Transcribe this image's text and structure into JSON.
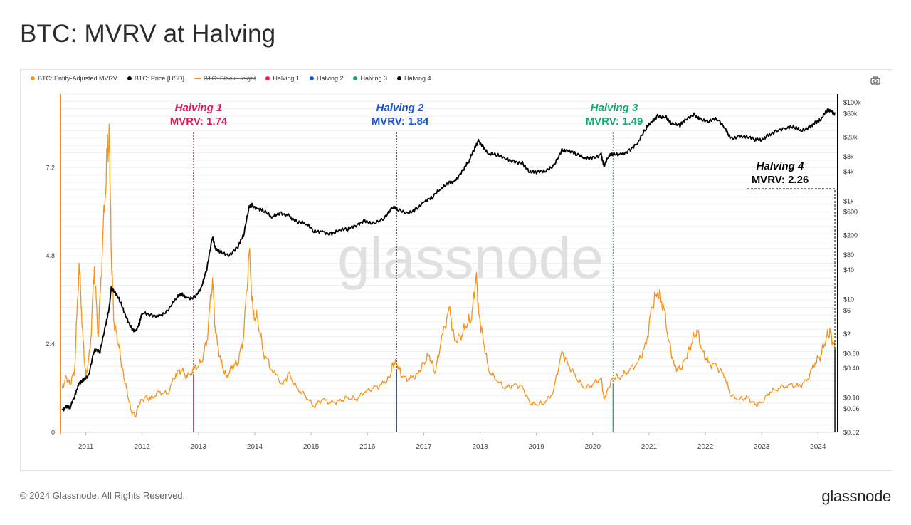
{
  "page": {
    "title": "BTC: MVRV at Halving",
    "copyright": "© 2024 Glassnode. All Rights Reserved.",
    "brand": "glassnode",
    "watermark": "glassnode"
  },
  "legend": [
    {
      "label": "BTC: Entity-Adjusted MVRV",
      "color": "#f7931a",
      "marker": "dot",
      "enabled": true
    },
    {
      "label": "BTC: Price [USD]",
      "color": "#000000",
      "marker": "dot",
      "enabled": true
    },
    {
      "label": "BTC: Block Height",
      "color": "#f7931a",
      "marker": "dash",
      "enabled": false
    },
    {
      "label": "Halving 1",
      "color": "#e6195a",
      "marker": "dot",
      "enabled": true
    },
    {
      "label": "Halving 2",
      "color": "#1455d9",
      "marker": "dot",
      "enabled": true
    },
    {
      "label": "Halving 3",
      "color": "#16a870",
      "marker": "dot",
      "enabled": true
    },
    {
      "label": "Halving 4",
      "color": "#000000",
      "marker": "dot",
      "enabled": true
    }
  ],
  "chart_data": {
    "type": "line",
    "x_range": [
      2010.55,
      2024.35
    ],
    "x_ticks": [
      "2011",
      "2012",
      "2013",
      "2014",
      "2015",
      "2016",
      "2017",
      "2018",
      "2019",
      "2020",
      "2021",
      "2022",
      "2023",
      "2024"
    ],
    "y_left": {
      "range": [
        0,
        9.2
      ],
      "ticks": [
        0,
        2.4,
        4.8,
        7.2
      ],
      "tick_labels": [
        "0",
        "2.4",
        "4.8",
        "7.2"
      ]
    },
    "y_right": {
      "scale": "log",
      "range": [
        0.02,
        150000
      ],
      "ticks": [
        0.02,
        0.06,
        0.1,
        0.4,
        0.8,
        2,
        6,
        10,
        40,
        80,
        200,
        600,
        1000,
        4000,
        8000,
        20000,
        60000,
        100000
      ],
      "tick_labels": [
        "$0.02",
        "$0.06",
        "$0.10",
        "$0.40",
        "$0.80",
        "$2",
        "$6",
        "$10",
        "$40",
        "$80",
        "$200",
        "$600",
        "$1k",
        "$4k",
        "$8k",
        "$20k",
        "$60k",
        "$100k"
      ]
    },
    "grid": true,
    "series": [
      {
        "name": "BTC: Entity-Adjusted MVRV",
        "color": "#f7931a",
        "axis": "left",
        "points": [
          [
            2010.58,
            1.2
          ],
          [
            2010.65,
            1.5
          ],
          [
            2010.72,
            1.3
          ],
          [
            2010.8,
            1.7
          ],
          [
            2010.88,
            4.6
          ],
          [
            2010.95,
            2.5
          ],
          [
            2011.0,
            1.5
          ],
          [
            2011.08,
            2.3
          ],
          [
            2011.15,
            4.5
          ],
          [
            2011.22,
            2.6
          ],
          [
            2011.3,
            5.2
          ],
          [
            2011.38,
            7.6
          ],
          [
            2011.42,
            8.0
          ],
          [
            2011.45,
            5.0
          ],
          [
            2011.5,
            3.0
          ],
          [
            2011.58,
            2.4
          ],
          [
            2011.65,
            1.7
          ],
          [
            2011.72,
            1.2
          ],
          [
            2011.8,
            0.6
          ],
          [
            2011.88,
            0.45
          ],
          [
            2011.95,
            0.8
          ],
          [
            2012.05,
            0.95
          ],
          [
            2012.15,
            0.9
          ],
          [
            2012.3,
            1.1
          ],
          [
            2012.45,
            1.05
          ],
          [
            2012.6,
            1.6
          ],
          [
            2012.7,
            1.7
          ],
          [
            2012.8,
            1.5
          ],
          [
            2012.93,
            1.74
          ],
          [
            2013.05,
            1.9
          ],
          [
            2013.15,
            2.5
          ],
          [
            2013.25,
            4.2
          ],
          [
            2013.3,
            2.7
          ],
          [
            2013.4,
            1.9
          ],
          [
            2013.5,
            1.5
          ],
          [
            2013.6,
            1.8
          ],
          [
            2013.7,
            1.9
          ],
          [
            2013.8,
            2.6
          ],
          [
            2013.9,
            4.9
          ],
          [
            2013.97,
            3.2
          ],
          [
            2014.05,
            3.1
          ],
          [
            2014.15,
            2.2
          ],
          [
            2014.3,
            1.7
          ],
          [
            2014.5,
            1.3
          ],
          [
            2014.6,
            1.6
          ],
          [
            2014.75,
            1.2
          ],
          [
            2014.9,
            1.0
          ],
          [
            2015.05,
            0.7
          ],
          [
            2015.2,
            0.9
          ],
          [
            2015.35,
            0.8
          ],
          [
            2015.5,
            0.85
          ],
          [
            2015.65,
            0.95
          ],
          [
            2015.8,
            0.9
          ],
          [
            2015.95,
            1.1
          ],
          [
            2016.1,
            1.2
          ],
          [
            2016.25,
            1.3
          ],
          [
            2016.4,
            1.5
          ],
          [
            2016.45,
            1.9
          ],
          [
            2016.53,
            1.84
          ],
          [
            2016.62,
            1.5
          ],
          [
            2016.75,
            1.45
          ],
          [
            2016.9,
            1.6
          ],
          [
            2017.0,
            1.9
          ],
          [
            2017.1,
            2.1
          ],
          [
            2017.2,
            1.6
          ],
          [
            2017.3,
            2.4
          ],
          [
            2017.45,
            3.4
          ],
          [
            2017.55,
            2.5
          ],
          [
            2017.65,
            2.6
          ],
          [
            2017.75,
            2.9
          ],
          [
            2017.85,
            3.1
          ],
          [
            2017.93,
            4.3
          ],
          [
            2017.98,
            3.2
          ],
          [
            2018.05,
            2.6
          ],
          [
            2018.15,
            1.7
          ],
          [
            2018.3,
            1.4
          ],
          [
            2018.45,
            1.2
          ],
          [
            2018.6,
            1.3
          ],
          [
            2018.75,
            1.25
          ],
          [
            2018.88,
            0.8
          ],
          [
            2019.0,
            0.75
          ],
          [
            2019.15,
            0.8
          ],
          [
            2019.3,
            1.1
          ],
          [
            2019.45,
            2.2
          ],
          [
            2019.55,
            1.9
          ],
          [
            2019.7,
            1.5
          ],
          [
            2019.85,
            1.2
          ],
          [
            2020.0,
            1.3
          ],
          [
            2020.15,
            1.5
          ],
          [
            2020.2,
            0.9
          ],
          [
            2020.28,
            1.2
          ],
          [
            2020.36,
            1.49
          ],
          [
            2020.5,
            1.5
          ],
          [
            2020.65,
            1.7
          ],
          [
            2020.8,
            1.9
          ],
          [
            2020.95,
            2.4
          ],
          [
            2021.05,
            3.4
          ],
          [
            2021.15,
            3.8
          ],
          [
            2021.25,
            3.5
          ],
          [
            2021.35,
            2.5
          ],
          [
            2021.45,
            1.8
          ],
          [
            2021.55,
            1.7
          ],
          [
            2021.65,
            2.0
          ],
          [
            2021.75,
            2.4
          ],
          [
            2021.85,
            2.8
          ],
          [
            2021.95,
            2.2
          ],
          [
            2022.05,
            1.9
          ],
          [
            2022.2,
            1.8
          ],
          [
            2022.35,
            1.5
          ],
          [
            2022.45,
            1.0
          ],
          [
            2022.6,
            0.9
          ],
          [
            2022.75,
            0.95
          ],
          [
            2022.88,
            0.75
          ],
          [
            2023.0,
            0.8
          ],
          [
            2023.15,
            1.1
          ],
          [
            2023.3,
            1.2
          ],
          [
            2023.5,
            1.3
          ],
          [
            2023.65,
            1.25
          ],
          [
            2023.8,
            1.4
          ],
          [
            2023.95,
            1.9
          ],
          [
            2024.05,
            2.1
          ],
          [
            2024.15,
            2.6
          ],
          [
            2024.22,
            2.7
          ],
          [
            2024.3,
            2.26
          ]
        ]
      },
      {
        "name": "BTC: Price [USD]",
        "color": "#000000",
        "axis": "right",
        "points": [
          [
            2010.58,
            0.06
          ],
          [
            2010.65,
            0.07
          ],
          [
            2010.72,
            0.06
          ],
          [
            2010.8,
            0.1
          ],
          [
            2010.88,
            0.2
          ],
          [
            2010.95,
            0.25
          ],
          [
            2011.05,
            0.3
          ],
          [
            2011.15,
            0.9
          ],
          [
            2011.25,
            0.8
          ],
          [
            2011.35,
            3
          ],
          [
            2011.42,
            8
          ],
          [
            2011.45,
            18
          ],
          [
            2011.5,
            14
          ],
          [
            2011.6,
            9
          ],
          [
            2011.7,
            5
          ],
          [
            2011.8,
            3
          ],
          [
            2011.88,
            2.3
          ],
          [
            2011.95,
            3
          ],
          [
            2012.0,
            5
          ],
          [
            2012.15,
            5
          ],
          [
            2012.3,
            5
          ],
          [
            2012.45,
            6
          ],
          [
            2012.6,
            10
          ],
          [
            2012.7,
            12
          ],
          [
            2012.8,
            11
          ],
          [
            2012.93,
            12
          ],
          [
            2013.05,
            18
          ],
          [
            2013.15,
            40
          ],
          [
            2013.25,
            180
          ],
          [
            2013.3,
            110
          ],
          [
            2013.4,
            100
          ],
          [
            2013.55,
            80
          ],
          [
            2013.7,
            110
          ],
          [
            2013.8,
            190
          ],
          [
            2013.9,
            800
          ],
          [
            2013.95,
            900
          ],
          [
            2014.05,
            700
          ],
          [
            2014.15,
            600
          ],
          [
            2014.3,
            450
          ],
          [
            2014.45,
            600
          ],
          [
            2014.6,
            550
          ],
          [
            2014.75,
            380
          ],
          [
            2014.9,
            330
          ],
          [
            2015.05,
            230
          ],
          [
            2015.2,
            250
          ],
          [
            2015.35,
            235
          ],
          [
            2015.5,
            260
          ],
          [
            2015.65,
            250
          ],
          [
            2015.8,
            300
          ],
          [
            2015.95,
            420
          ],
          [
            2016.1,
            380
          ],
          [
            2016.3,
            450
          ],
          [
            2016.45,
            700
          ],
          [
            2016.53,
            650
          ],
          [
            2016.7,
            600
          ],
          [
            2016.85,
            720
          ],
          [
            2017.0,
            950
          ],
          [
            2017.15,
            1100
          ],
          [
            2017.3,
            1700
          ],
          [
            2017.45,
            2500
          ],
          [
            2017.55,
            2700
          ],
          [
            2017.7,
            4300
          ],
          [
            2017.8,
            6000
          ],
          [
            2017.9,
            11000
          ],
          [
            2017.97,
            18000
          ],
          [
            2018.05,
            14000
          ],
          [
            2018.15,
            9000
          ],
          [
            2018.3,
            8000
          ],
          [
            2018.45,
            7000
          ],
          [
            2018.6,
            6800
          ],
          [
            2018.75,
            6400
          ],
          [
            2018.88,
            3800
          ],
          [
            2019.0,
            3600
          ],
          [
            2019.15,
            3900
          ],
          [
            2019.3,
            5500
          ],
          [
            2019.45,
            11500
          ],
          [
            2019.55,
            10500
          ],
          [
            2019.7,
            8500
          ],
          [
            2019.85,
            7300
          ],
          [
            2020.0,
            8000
          ],
          [
            2020.15,
            9500
          ],
          [
            2020.2,
            5000
          ],
          [
            2020.28,
            7500
          ],
          [
            2020.36,
            8700
          ],
          [
            2020.5,
            9500
          ],
          [
            2020.65,
            11500
          ],
          [
            2020.8,
            15000
          ],
          [
            2020.95,
            28000
          ],
          [
            2021.05,
            40000
          ],
          [
            2021.15,
            58000
          ],
          [
            2021.3,
            55000
          ],
          [
            2021.4,
            36000
          ],
          [
            2021.55,
            32000
          ],
          [
            2021.65,
            45000
          ],
          [
            2021.8,
            62000
          ],
          [
            2021.9,
            50000
          ],
          [
            2022.05,
            40000
          ],
          [
            2022.2,
            44000
          ],
          [
            2022.35,
            30000
          ],
          [
            2022.45,
            20000
          ],
          [
            2022.6,
            22000
          ],
          [
            2022.75,
            19500
          ],
          [
            2022.88,
            16500
          ],
          [
            2023.0,
            17000
          ],
          [
            2023.1,
            23000
          ],
          [
            2023.25,
            28000
          ],
          [
            2023.45,
            30000
          ],
          [
            2023.6,
            29000
          ],
          [
            2023.7,
            26000
          ],
          [
            2023.85,
            35000
          ],
          [
            2023.95,
            42000
          ],
          [
            2024.05,
            43000
          ],
          [
            2024.15,
            62000
          ],
          [
            2024.22,
            70000
          ],
          [
            2024.3,
            64000
          ]
        ]
      }
    ],
    "halvings": [
      {
        "name": "Halving 1",
        "x": 2012.91,
        "title": "Halving 1",
        "mvrv_text": "MVRV: 1.74",
        "color": "#e6195a"
      },
      {
        "name": "Halving 2",
        "x": 2016.52,
        "title": "Halving 2",
        "mvrv_text": "MVRV: 1.84",
        "color": "#1455d9"
      },
      {
        "name": "Halving 3",
        "x": 2020.36,
        "title": "Halving 3",
        "mvrv_text": "MVRV: 1.49",
        "color": "#16a870"
      },
      {
        "name": "Halving 4",
        "x": 2024.3,
        "title": "Halving 4",
        "mvrv_text": "MVRV: 2.26",
        "color": "#000000"
      }
    ]
  }
}
